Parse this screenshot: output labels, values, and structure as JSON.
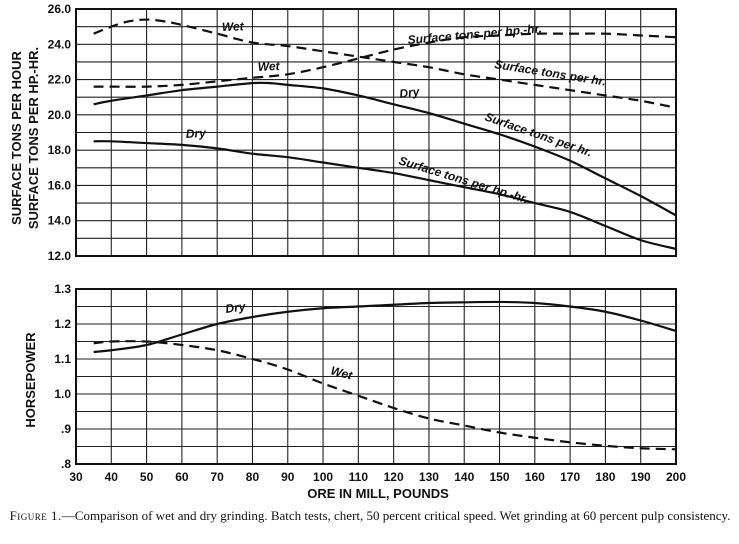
{
  "caption": {
    "prefix": "Figure 1.",
    "text": "—Comparison of wet and dry grinding.  Batch tests, chert, 50 percent critical speed.  Wet grinding at 60 percent pulp consistency."
  },
  "chart_data": [
    {
      "type": "line",
      "panel": "top",
      "ylabel": [
        "SURFACE TONS PER HOUR",
        "SURFACE TONS PER HP.-HR."
      ],
      "xlim": [
        30,
        200
      ],
      "ylim": [
        12.0,
        26.0
      ],
      "yticks": [
        "12.0",
        "14.0",
        "16.0",
        "18.0",
        "20.0",
        "22.0",
        "24.0",
        "26.0"
      ],
      "grid": true,
      "series": [
        {
          "name": "Wet",
          "label": "Surface tons per hp.-hr.",
          "style": "dashed",
          "x": [
            35,
            40,
            45,
            50,
            55,
            60,
            70,
            80,
            90,
            100,
            110,
            120,
            130,
            140,
            150,
            160,
            170,
            180,
            190,
            200
          ],
          "y": [
            24.6,
            25.0,
            25.3,
            25.4,
            25.3,
            25.1,
            24.6,
            24.1,
            23.9,
            23.6,
            23.3,
            23.0,
            22.7,
            22.3,
            22.0,
            21.7,
            21.4,
            21.1,
            20.8,
            20.4
          ]
        },
        {
          "name": "Wet",
          "label": "Surface tons per hr.",
          "style": "dashed",
          "x": [
            35,
            40,
            50,
            60,
            70,
            80,
            90,
            100,
            110,
            120,
            130,
            140,
            150,
            160,
            170,
            180,
            190,
            200
          ],
          "y": [
            21.6,
            21.6,
            21.6,
            21.7,
            21.9,
            22.1,
            22.3,
            22.7,
            23.2,
            23.7,
            24.1,
            24.4,
            24.5,
            24.6,
            24.6,
            24.6,
            24.5,
            24.4
          ]
        },
        {
          "name": "Dry",
          "label": "Surface tons per hr.",
          "style": "solid",
          "x": [
            35,
            40,
            50,
            60,
            70,
            80,
            85,
            90,
            100,
            110,
            120,
            130,
            140,
            150,
            160,
            170,
            180,
            190,
            200
          ],
          "y": [
            20.6,
            20.8,
            21.1,
            21.4,
            21.6,
            21.8,
            21.8,
            21.7,
            21.5,
            21.1,
            20.6,
            20.1,
            19.5,
            18.9,
            18.2,
            17.4,
            16.4,
            15.4,
            14.3
          ]
        },
        {
          "name": "Dry",
          "label": "Surface tons per hp.-hr.",
          "style": "solid",
          "x": [
            35,
            40,
            50,
            60,
            70,
            80,
            90,
            100,
            110,
            120,
            130,
            140,
            150,
            160,
            170,
            180,
            190,
            200
          ],
          "y": [
            18.5,
            18.5,
            18.4,
            18.3,
            18.1,
            17.8,
            17.6,
            17.3,
            17.0,
            16.7,
            16.3,
            15.9,
            15.5,
            15.0,
            14.5,
            13.7,
            12.9,
            12.4
          ]
        }
      ]
    },
    {
      "type": "line",
      "panel": "bottom",
      "ylabel": "HORSEPOWER",
      "xlabel": "ORE IN MILL, POUNDS",
      "xlim": [
        30,
        200
      ],
      "ylim": [
        0.8,
        1.3
      ],
      "yticks": [
        ".8",
        ".9",
        "1.0",
        "1.1",
        "1.2",
        "1.3"
      ],
      "xticks": [
        "30",
        "40",
        "50",
        "60",
        "70",
        "80",
        "90",
        "100",
        "110",
        "120",
        "130",
        "140",
        "150",
        "160",
        "170",
        "180",
        "190",
        "200"
      ],
      "grid": true,
      "series": [
        {
          "name": "Dry",
          "style": "solid",
          "x": [
            35,
            40,
            50,
            60,
            70,
            80,
            90,
            100,
            110,
            120,
            130,
            140,
            150,
            160,
            170,
            180,
            190,
            200
          ],
          "y": [
            1.12,
            1.125,
            1.14,
            1.17,
            1.2,
            1.22,
            1.235,
            1.245,
            1.25,
            1.255,
            1.26,
            1.262,
            1.263,
            1.26,
            1.25,
            1.235,
            1.21,
            1.18
          ]
        },
        {
          "name": "Wet",
          "style": "dashed",
          "x": [
            35,
            40,
            50,
            60,
            70,
            80,
            90,
            100,
            110,
            120,
            130,
            140,
            150,
            160,
            170,
            180,
            190,
            200
          ],
          "y": [
            1.145,
            1.15,
            1.15,
            1.14,
            1.125,
            1.1,
            1.07,
            1.03,
            0.995,
            0.96,
            0.93,
            0.91,
            0.89,
            0.875,
            0.862,
            0.852,
            0.845,
            0.842
          ]
        }
      ]
    }
  ]
}
